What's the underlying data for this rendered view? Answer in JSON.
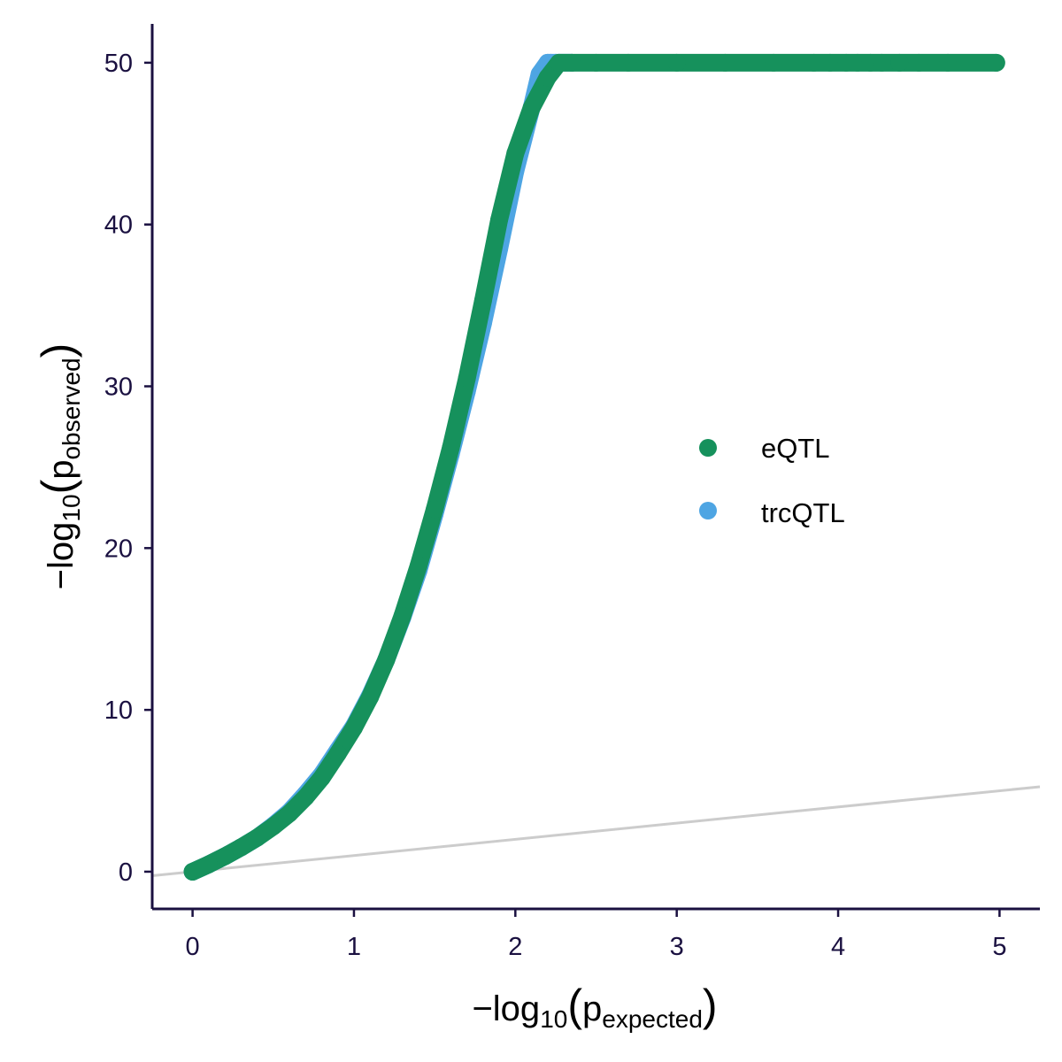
{
  "chart_data": {
    "type": "scatter",
    "title": "",
    "xlabel": {
      "base": "−log",
      "sub": "10",
      "open": "(",
      "p": "p",
      "psub": "expected",
      "close": ")"
    },
    "ylabel": {
      "base": "−log",
      "sub": "10",
      "open": "(",
      "p": "p",
      "psub": "observed",
      "close": ")"
    },
    "xlim": [
      -0.25,
      5.25
    ],
    "ylim": [
      -2.3,
      52.4
    ],
    "x_ticks": [
      0,
      1,
      2,
      3,
      4,
      5
    ],
    "x_tick_labels": [
      "0",
      "1",
      "2",
      "3",
      "4",
      "5"
    ],
    "y_ticks": [
      0,
      10,
      20,
      30,
      40,
      50
    ],
    "y_tick_labels": [
      "0",
      "10",
      "20",
      "30",
      "40",
      "50"
    ],
    "reference_line": {
      "slope": 1,
      "intercept": 0,
      "color": "#cccccc"
    },
    "legend_position": "right",
    "series": [
      {
        "name": "trcQTL",
        "color": "#4ea5e3",
        "x": [
          0,
          0.1,
          0.2,
          0.3,
          0.4,
          0.5,
          0.6,
          0.7,
          0.8,
          0.9,
          1.0,
          1.1,
          1.2,
          1.3,
          1.4,
          1.5,
          1.6,
          1.7,
          1.8,
          1.9,
          2.0,
          2.1,
          2.15,
          2.2,
          2.22,
          2.25,
          2.35
        ],
        "y": [
          0,
          0.45,
          0.95,
          1.5,
          2.1,
          2.85,
          3.7,
          4.8,
          6.0,
          7.5,
          9.0,
          10.9,
          13.1,
          15.7,
          18.6,
          22.1,
          25.8,
          29.7,
          33.9,
          38.5,
          43.3,
          47.2,
          49.3,
          50,
          50,
          50,
          50
        ]
      },
      {
        "name": "eQTL",
        "color": "#16915c",
        "x": [
          0,
          0.1,
          0.2,
          0.3,
          0.4,
          0.5,
          0.6,
          0.7,
          0.8,
          0.9,
          1.0,
          1.1,
          1.2,
          1.3,
          1.4,
          1.5,
          1.6,
          1.7,
          1.8,
          1.9,
          2.0,
          2.1,
          2.2,
          2.27,
          2.35,
          2.5,
          2.7,
          3.0,
          3.3,
          3.6,
          3.85,
          3.95,
          4.05,
          4.12,
          4.2,
          4.27,
          4.38,
          4.5,
          4.68,
          4.98
        ],
        "y": [
          0,
          0.45,
          0.95,
          1.5,
          2.1,
          2.8,
          3.6,
          4.6,
          5.8,
          7.3,
          8.9,
          10.8,
          13.1,
          15.8,
          18.9,
          22.4,
          26.2,
          30.5,
          35.3,
          40.3,
          44.4,
          47.2,
          49.1,
          50,
          50,
          50,
          50,
          50,
          50,
          50,
          50,
          50,
          50,
          50,
          50,
          50,
          50,
          50,
          50,
          50
        ]
      }
    ],
    "legend": [
      {
        "name": "eQTL",
        "color": "#16915c"
      },
      {
        "name": "trcQTL",
        "color": "#4ea5e3"
      }
    ]
  }
}
